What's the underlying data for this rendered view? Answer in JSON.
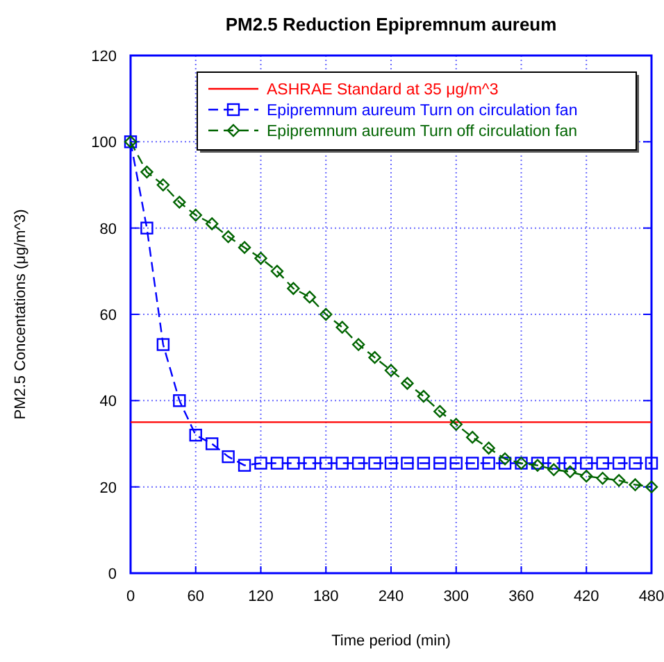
{
  "chart_data": {
    "type": "line",
    "title": "PM2.5 Reduction Epipremnum aureum",
    "xlabel": "Time period (min)",
    "ylabel": "PM2.5 Concentations (μg/m^3)",
    "xlim": [
      0,
      480
    ],
    "xticks": [
      0,
      60,
      120,
      180,
      240,
      300,
      360,
      420,
      480
    ],
    "ylim": [
      0,
      120
    ],
    "yticks": [
      0,
      20,
      40,
      60,
      80,
      100,
      120
    ],
    "grid": true,
    "legend": "top right",
    "x": [
      0,
      15,
      30,
      45,
      60,
      75,
      90,
      105,
      120,
      135,
      150,
      165,
      180,
      195,
      210,
      225,
      240,
      255,
      270,
      285,
      300,
      315,
      330,
      345,
      360,
      375,
      390,
      405,
      420,
      435,
      450,
      465,
      480
    ],
    "series": [
      {
        "name": "ASHRAE Standard at 35 μg/m^3",
        "color": "#ff0000",
        "x": [
          0,
          480
        ],
        "values": [
          35,
          35
        ],
        "marker": "none",
        "line_style": "solid"
      },
      {
        "name": "Epipremnum aureum Turn on circulation fan",
        "color": "#0000ff",
        "marker": "square",
        "line_style": "dashed",
        "values": [
          100,
          80,
          53,
          40,
          32,
          30,
          27,
          25,
          25.5,
          25.5,
          25.5,
          25.5,
          25.5,
          25.5,
          25.5,
          25.5,
          25.5,
          25.5,
          25.5,
          25.5,
          25.5,
          25.5,
          25.5,
          25.5,
          25.5,
          25.5,
          25.5,
          25.5,
          25.5,
          25.5,
          25.5,
          25.5,
          25.5
        ]
      },
      {
        "name": "Epipremnum aureum Turn off circulation fan",
        "color": "#006400",
        "marker": "diamond",
        "line_style": "dashed",
        "values": [
          100,
          93,
          90,
          86,
          83,
          81,
          78,
          75.5,
          73,
          70,
          66,
          64,
          60,
          57,
          53,
          50,
          47,
          44,
          41,
          37.5,
          34.5,
          31.5,
          29,
          26.5,
          25.5,
          25,
          24,
          23.5,
          22.5,
          22,
          21.5,
          20.5,
          20
        ]
      }
    ]
  }
}
